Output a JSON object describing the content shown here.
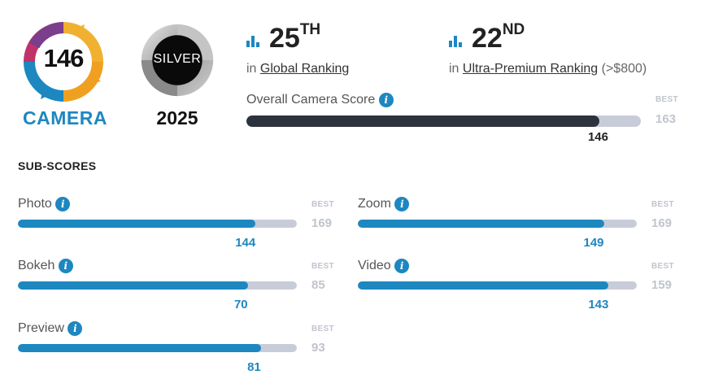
{
  "camera_badge": {
    "score": "146",
    "label": "CAMERA"
  },
  "silver_badge": {
    "text": "SILVER",
    "year": "2025"
  },
  "global_ranking": {
    "rank": "25",
    "suffix": "TH",
    "prefix": "in",
    "link": "Global Ranking"
  },
  "segment_ranking": {
    "rank": "22",
    "suffix": "ND",
    "prefix": "in",
    "link": "Ultra-Premium Ranking",
    "note": "(>$800)"
  },
  "overall": {
    "title": "Overall Camera Score",
    "info": "i",
    "best_label": "BEST",
    "best": "163",
    "value": "146",
    "fraction": 0.8957
  },
  "subscores_heading": "SUB-SCORES",
  "subscores": [
    {
      "name": "Photo",
      "value": "144",
      "best": "169",
      "fraction": 0.852
    },
    {
      "name": "Zoom",
      "value": "149",
      "best": "169",
      "fraction": 0.882
    },
    {
      "name": "Bokeh",
      "value": "70",
      "best": "85",
      "fraction": 0.824
    },
    {
      "name": "Video",
      "value": "143",
      "best": "159",
      "fraction": 0.899
    },
    {
      "name": "Preview",
      "value": "81",
      "best": "93",
      "fraction": 0.871
    }
  ],
  "colors": {
    "accent": "#1d87c0",
    "overall_fill": "#2d333d",
    "track": "#c8ccd8",
    "best": "#c0c4cc"
  }
}
